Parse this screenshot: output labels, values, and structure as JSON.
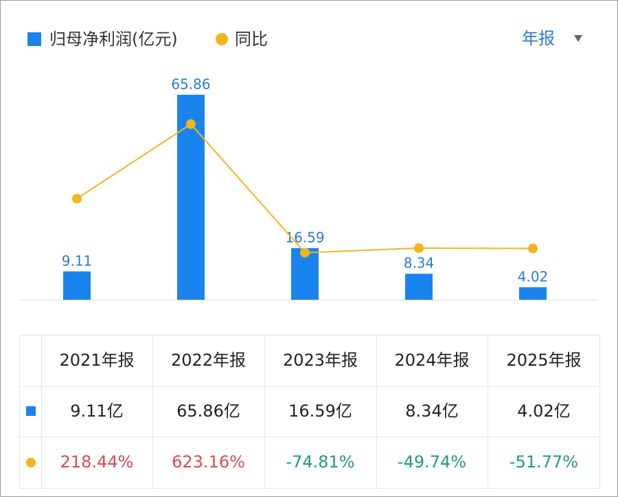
{
  "chart_data": {
    "type": "bar_line",
    "period_selector": "年报",
    "categories": [
      "2021年报",
      "2022年报",
      "2023年报",
      "2024年报",
      "2025年报"
    ],
    "series": [
      {
        "name": "归母净利润(亿元)",
        "type": "bar",
        "color": "#1a84ee",
        "values": [
          9.11,
          65.86,
          16.59,
          8.34,
          4.02
        ],
        "value_labels": [
          "9.11亿",
          "65.86亿",
          "16.59亿",
          "8.34亿",
          "4.02亿"
        ]
      },
      {
        "name": "同比",
        "type": "line",
        "axis": "y2",
        "color": "#f2b51c",
        "values": [
          218.44,
          623.16,
          -74.81,
          -49.74,
          -51.77
        ],
        "value_labels": [
          "218.44%",
          "623.16%",
          "-74.81%",
          "-49.74%",
          "-51.77%"
        ]
      }
    ],
    "ylim": [
      0,
      74
    ],
    "y2lim": [
      -330,
      920
    ],
    "positive_color": "#e0474d",
    "negative_color": "#1f9e6e"
  }
}
